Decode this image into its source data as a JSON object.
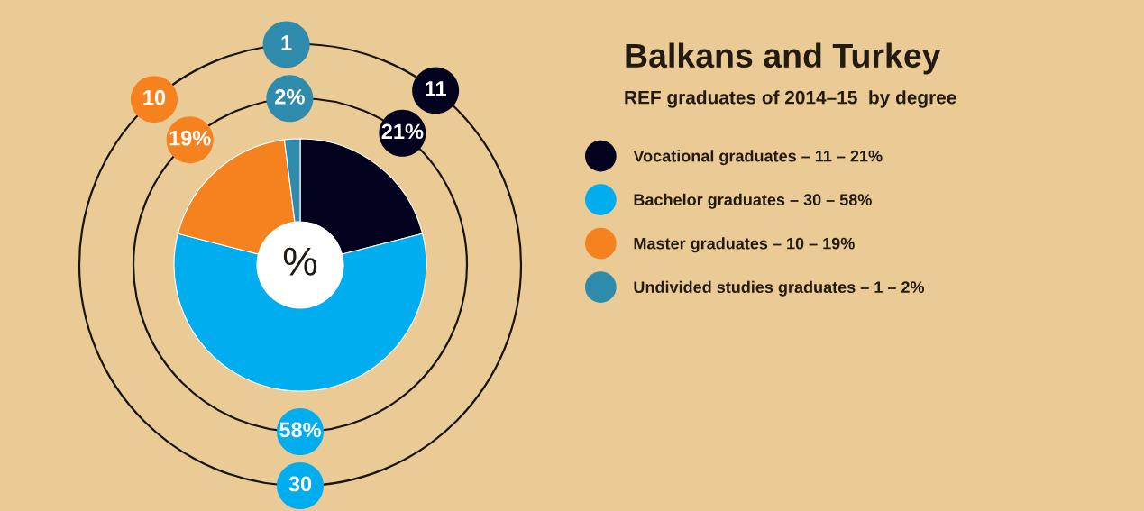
{
  "chart_data": {
    "type": "donut",
    "title": "Balkans and Turkey",
    "subtitle": "REF graduates of 2014–15  by degree",
    "categories": [
      "Vocational graduates – 11 – 21%",
      "Bachelor graduates – 30 – 58%",
      "Master graduates – 10 – 19%",
      "Undivided studies graduates – 1 – 2%"
    ],
    "values": [
      21,
      58,
      19,
      2
    ],
    "colors": [
      "#02021f",
      "#00aeef",
      "#f5821f",
      "#2e8bab"
    ],
    "value_labels": [
      "21%",
      "58%",
      "19%",
      "2%"
    ],
    "annotations": [
      "%",
      {
        "text": "11",
        "x": "Vocational graduates – 11 – 21%"
      },
      {
        "text": "30",
        "x": "Bachelor graduates – 30 – 58%"
      },
      {
        "text": "10",
        "x": "Master graduates – 10 – 19%"
      },
      {
        "text": "1",
        "x": "Undivided studies graduates – 1 – 2%"
      }
    ],
    "legend": "right"
  }
}
